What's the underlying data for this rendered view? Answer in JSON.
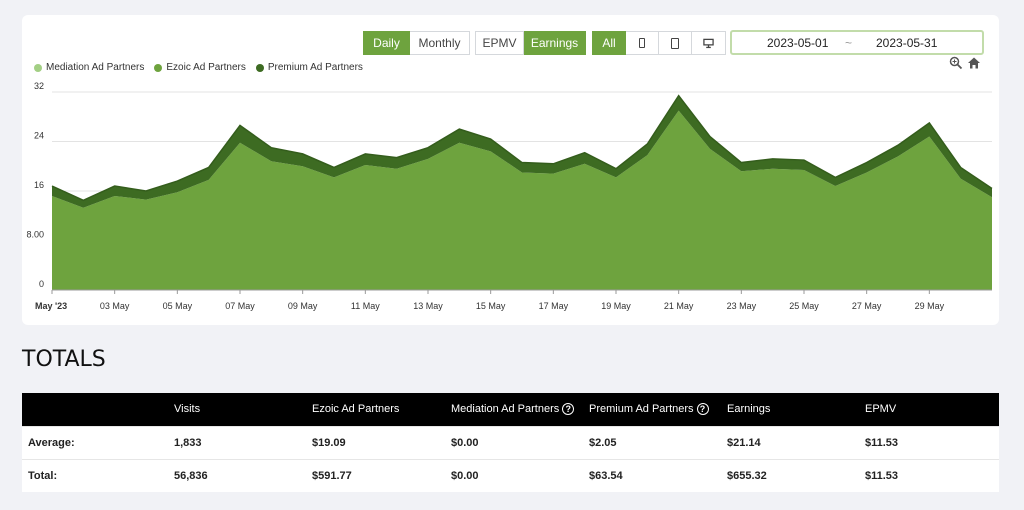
{
  "controls": {
    "period": [
      "Daily",
      "Monthly"
    ],
    "metric": [
      "EPMV",
      "Earnings"
    ],
    "device_all": "All",
    "devices": [
      "phone-icon",
      "tablet-icon",
      "desktop-icon"
    ]
  },
  "date_range": {
    "start": "2023-05-01",
    "separator": "~",
    "end": "2023-05-31"
  },
  "icons": {
    "zoom": "zoom-icon",
    "home": "home-icon"
  },
  "colors": {
    "accent": "#6ea33e",
    "mediation": "#a3cf84",
    "ezoic": "#6ea33e",
    "premium": "#3d6b22"
  },
  "chart_data": {
    "type": "area",
    "stacked": true,
    "legend": [
      "Mediation Ad Partners",
      "Ezoic Ad Partners",
      "Premium Ad Partners"
    ],
    "legend_position": "top-left",
    "ylim": [
      0,
      32
    ],
    "yticks": [
      "0",
      "8.00",
      "16",
      "24",
      "32"
    ],
    "x": [
      "2023-05-01",
      "2023-05-02",
      "2023-05-03",
      "2023-05-04",
      "2023-05-05",
      "2023-05-06",
      "2023-05-07",
      "2023-05-08",
      "2023-05-09",
      "2023-05-10",
      "2023-05-11",
      "2023-05-12",
      "2023-05-13",
      "2023-05-14",
      "2023-05-15",
      "2023-05-16",
      "2023-05-17",
      "2023-05-18",
      "2023-05-19",
      "2023-05-20",
      "2023-05-21",
      "2023-05-22",
      "2023-05-23",
      "2023-05-24",
      "2023-05-25",
      "2023-05-26",
      "2023-05-27",
      "2023-05-28",
      "2023-05-29",
      "2023-05-30",
      "2023-05-31"
    ],
    "xtick_labels": [
      "May '23",
      "03 May",
      "05 May",
      "07 May",
      "09 May",
      "11 May",
      "13 May",
      "15 May",
      "17 May",
      "19 May",
      "21 May",
      "23 May",
      "25 May",
      "27 May",
      "29 May"
    ],
    "series": [
      {
        "name": "Mediation Ad Partners",
        "values": [
          0,
          0,
          0,
          0,
          0,
          0,
          0,
          0,
          0,
          0,
          0,
          0,
          0,
          0,
          0,
          0,
          0,
          0,
          0,
          0,
          0,
          0,
          0,
          0,
          0,
          0,
          0,
          0,
          0,
          0,
          0
        ]
      },
      {
        "name": "Ezoic Ad Partners",
        "values": [
          15.2,
          13.3,
          15.2,
          14.6,
          15.8,
          17.8,
          23.8,
          20.8,
          20.0,
          18.2,
          20.2,
          19.6,
          21.2,
          23.8,
          22.4,
          19.0,
          18.8,
          20.4,
          18.2,
          21.8,
          29.0,
          22.8,
          19.2,
          19.6,
          19.4,
          16.8,
          19.0,
          21.6,
          24.8,
          18.0,
          15.0
        ]
      },
      {
        "name": "Premium Ad Partners",
        "values": [
          1.6,
          1.2,
          1.6,
          1.4,
          1.8,
          2.0,
          2.8,
          2.2,
          2.0,
          1.6,
          1.8,
          1.8,
          1.8,
          2.2,
          2.0,
          1.6,
          1.6,
          1.8,
          1.4,
          1.8,
          2.4,
          2.0,
          1.4,
          1.6,
          1.6,
          1.4,
          1.6,
          1.8,
          2.2,
          1.8,
          1.4
        ]
      }
    ]
  },
  "totals": {
    "title": "TOTALS",
    "columns": [
      "",
      "Visits",
      "Ezoic Ad Partners",
      "Mediation Ad Partners",
      "Premium Ad Partners",
      "Earnings",
      "EPMV"
    ],
    "rows": [
      [
        "Average:",
        "1,833",
        "$19.09",
        "$0.00",
        "$2.05",
        "$21.14",
        "$11.53"
      ],
      [
        "Total:",
        "56,836",
        "$591.77",
        "$0.00",
        "$63.54",
        "$655.32",
        "$11.53"
      ]
    ]
  }
}
